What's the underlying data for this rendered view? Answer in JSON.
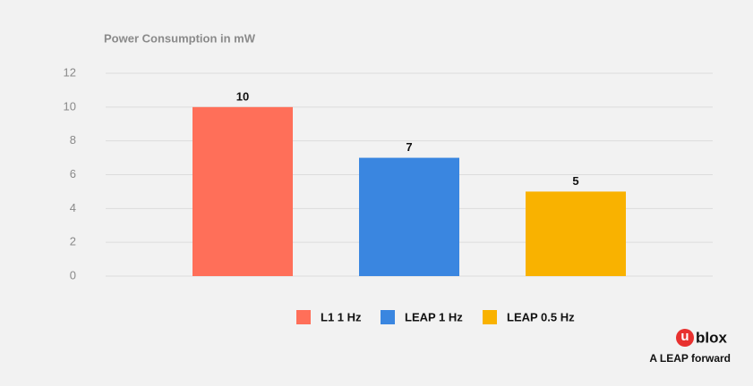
{
  "chart_data": {
    "type": "bar",
    "title": "Power Consumption in mW",
    "categories": [
      null
    ],
    "series": [
      {
        "name": "L1 1 Hz",
        "color": "#ff6f59",
        "values": [
          10
        ]
      },
      {
        "name": "LEAP 1 Hz",
        "color": "#3a86e0",
        "values": [
          7
        ]
      },
      {
        "name": "LEAP 0.5 Hz",
        "color": "#f9b200",
        "values": [
          5
        ]
      }
    ],
    "ylim": [
      0,
      12
    ],
    "yticks": [
      0,
      2,
      4,
      6,
      8,
      10,
      12
    ],
    "grid": true,
    "legend": "bottom",
    "logo": {
      "mark": "u",
      "text": "blox",
      "color": "#e8312f"
    },
    "tagline": "A LEAP forward"
  }
}
